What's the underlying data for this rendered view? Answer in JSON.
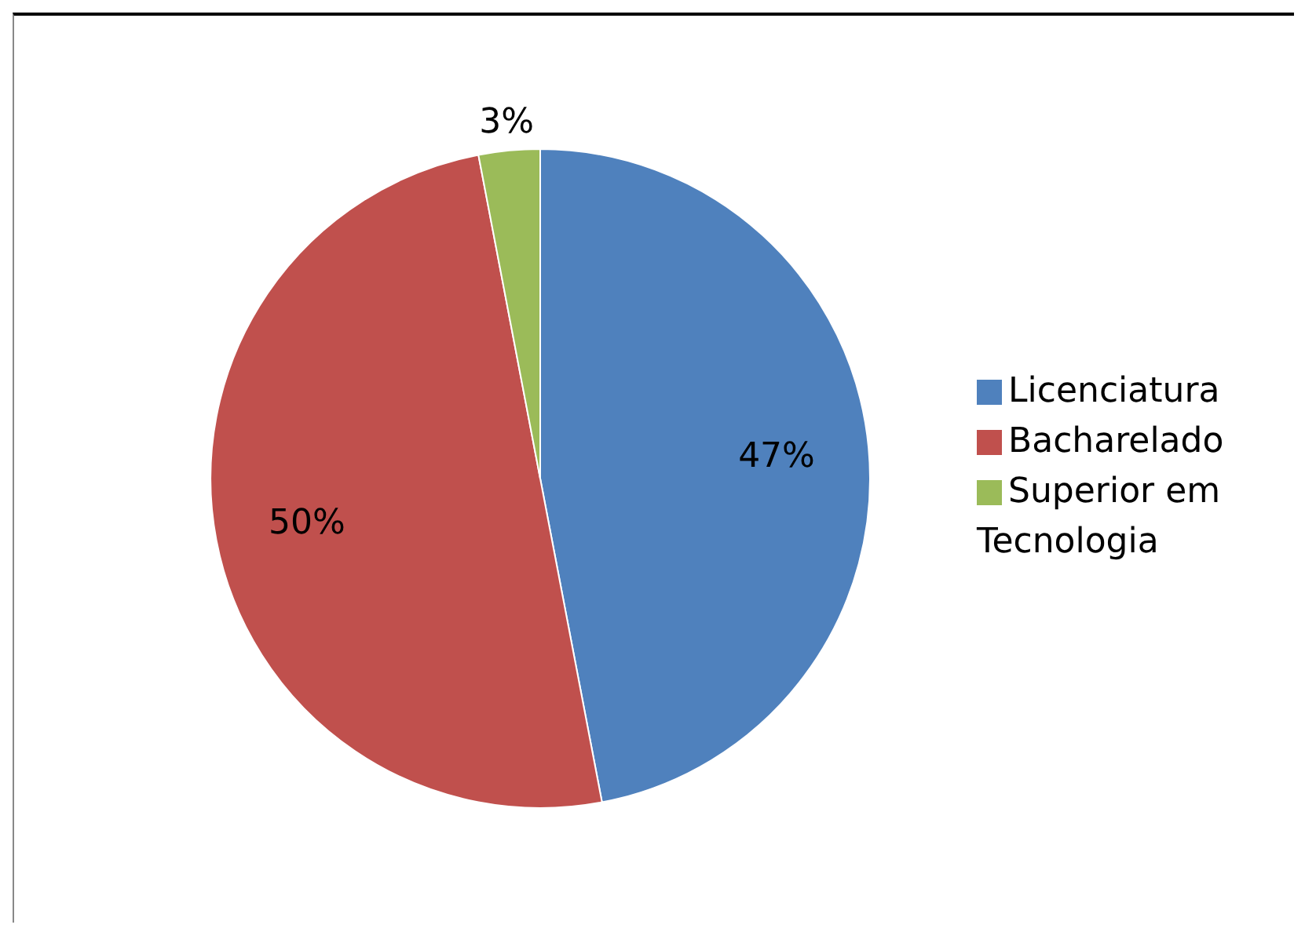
{
  "chart_data": {
    "type": "pie",
    "categories": [
      "Licenciatura",
      "Bacharelado",
      "Superior em Tecnologia"
    ],
    "values": [
      47,
      50,
      3
    ],
    "colors": [
      "#4f81bd",
      "#c0504d",
      "#9bbb59"
    ],
    "value_labels": [
      "47%",
      "50%",
      "3%"
    ],
    "legend": "right"
  }
}
